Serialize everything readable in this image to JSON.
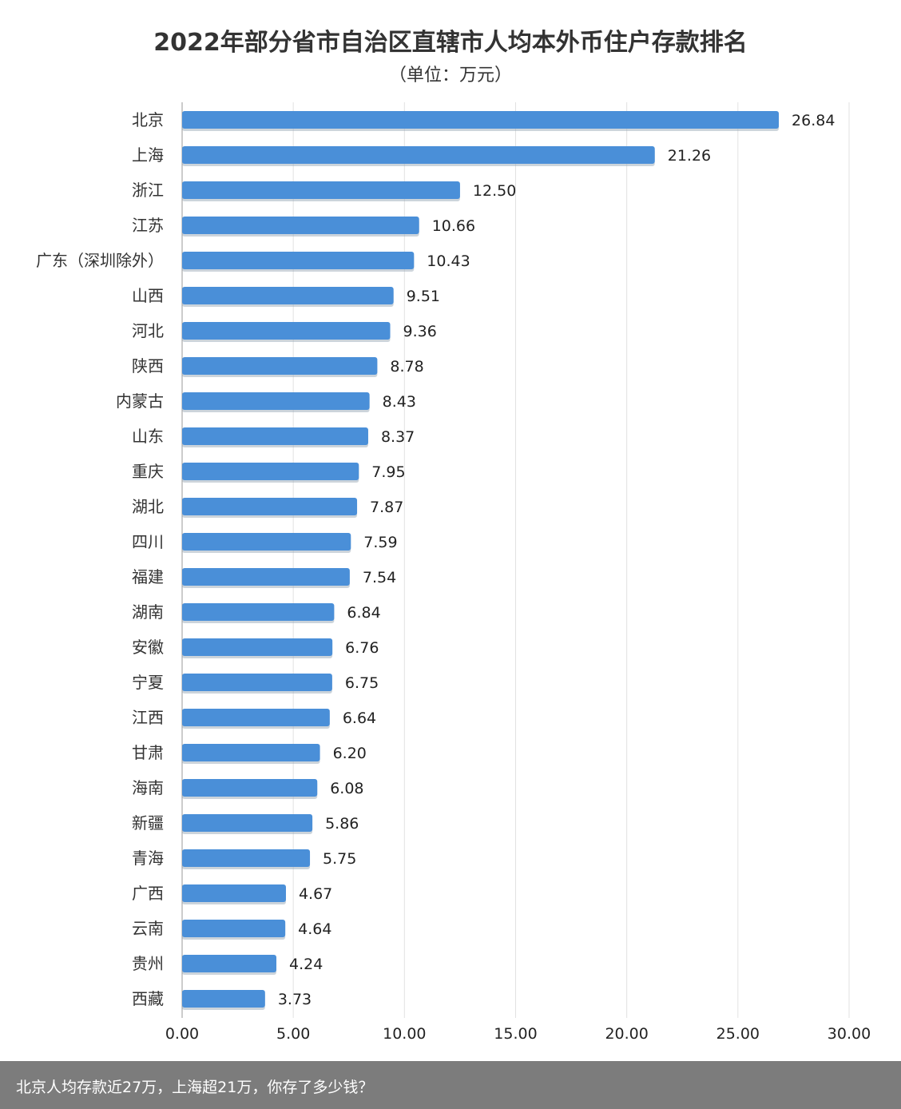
{
  "chart_data": {
    "type": "bar",
    "orientation": "horizontal",
    "title": "2022年部分省市自治区直辖市人均本外币住户存款排名",
    "subtitle": "（单位：万元）",
    "categories": [
      "北京",
      "上海",
      "浙江",
      "江苏",
      "广东（深圳除外）",
      "山西",
      "河北",
      "陕西",
      "内蒙古",
      "山东",
      "重庆",
      "湖北",
      "四川",
      "福建",
      "湖南",
      "安徽",
      "宁夏",
      "江西",
      "甘肃",
      "海南",
      "新疆",
      "青海",
      "广西",
      "云南",
      "贵州",
      "西藏"
    ],
    "values": [
      26.84,
      21.26,
      12.5,
      10.66,
      10.43,
      9.51,
      9.36,
      8.78,
      8.43,
      8.37,
      7.95,
      7.87,
      7.59,
      7.54,
      6.84,
      6.76,
      6.75,
      6.64,
      6.2,
      6.08,
      5.86,
      5.75,
      4.67,
      4.64,
      4.24,
      3.73
    ],
    "xlim": [
      0,
      30
    ],
    "xticks": [
      "0.00",
      "5.00",
      "10.00",
      "15.00",
      "20.00",
      "25.00",
      "30.00"
    ],
    "grid": "vertical",
    "bar_color": "#4a8fd8"
  },
  "caption": "北京人均存款近27万，上海超21万，你存了多少钱？"
}
